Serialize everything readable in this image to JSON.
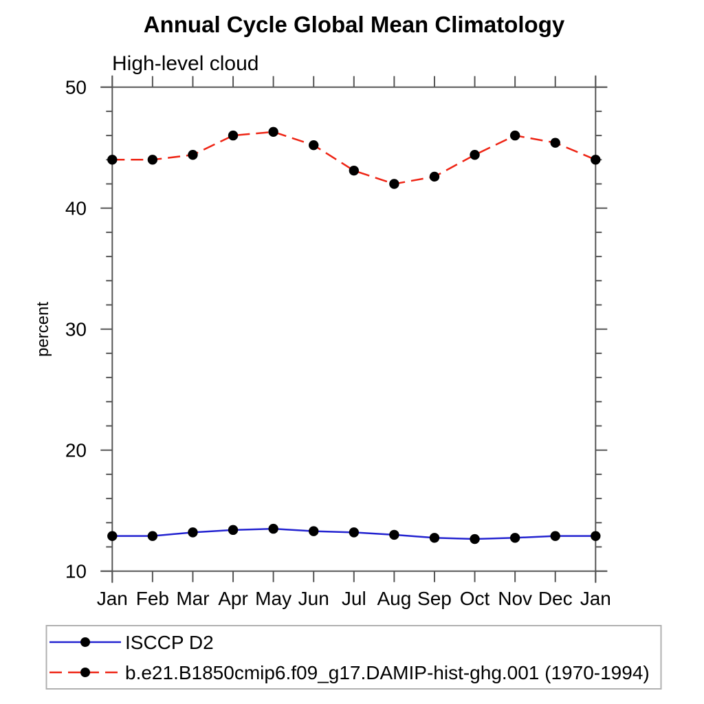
{
  "title": "Annual Cycle Global Mean Climatology",
  "subtitle": "High-level cloud",
  "ylabel": "percent",
  "chart_data": {
    "type": "line",
    "categories": [
      "Jan",
      "Feb",
      "Mar",
      "Apr",
      "May",
      "Jun",
      "Jul",
      "Aug",
      "Sep",
      "Oct",
      "Nov",
      "Dec",
      "Jan"
    ],
    "series": [
      {
        "name": "ISCCP D2",
        "line_style": "solid",
        "color": "#2222d0",
        "marker": "filled-circle",
        "marker_color": "#000000",
        "values": [
          12.9,
          12.9,
          13.2,
          13.4,
          13.5,
          13.3,
          13.2,
          13.0,
          12.75,
          12.65,
          12.75,
          12.9,
          12.9
        ]
      },
      {
        "name": "b.e21.B1850cmip6.f09_g17.DAMIP-hist-ghg.001 (1970-1994)",
        "line_style": "dashed",
        "color": "#ee2414",
        "marker": "filled-circle",
        "marker_color": "#000000",
        "values": [
          44.0,
          44.0,
          44.4,
          46.0,
          46.3,
          45.2,
          43.1,
          42.0,
          42.6,
          44.4,
          46.0,
          45.4,
          44.0
        ]
      }
    ],
    "xlabel": "",
    "ylim": [
      10,
      50
    ],
    "yticks": [
      10,
      20,
      30,
      40,
      50
    ],
    "y_minor_step": 2,
    "grid": false,
    "legend_position": "bottom-left-box"
  },
  "style": {
    "axis_color": "#555555",
    "text_color": "#000000",
    "legend_border_color": "#b0b0b0",
    "background": "#ffffff"
  }
}
